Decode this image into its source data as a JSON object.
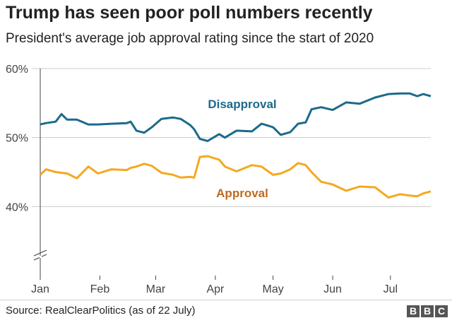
{
  "title": "Trump has seen poor poll numbers recently",
  "subtitle": "President's average job approval rating since the start of 2020",
  "source": "Source: RealClearPolitics (as of 22 July)",
  "logo": "BBC",
  "chart_data": {
    "type": "line",
    "xlabel": "",
    "ylabel": "",
    "ylim": [
      30,
      60
    ],
    "xlim": [
      "2020-01-01",
      "2020-07-22"
    ],
    "grid": true,
    "y_ticks": [
      {
        "value": 60,
        "label": "60%"
      },
      {
        "value": 50,
        "label": "50%"
      },
      {
        "value": 40,
        "label": "40%"
      }
    ],
    "x_ticks": [
      {
        "date": "2020-01-01",
        "label": "Jan"
      },
      {
        "date": "2020-02-01",
        "label": "Feb"
      },
      {
        "date": "2020-03-01",
        "label": "Mar"
      },
      {
        "date": "2020-04-01",
        "label": "Apr"
      },
      {
        "date": "2020-05-01",
        "label": "May"
      },
      {
        "date": "2020-06-01",
        "label": "Jun"
      },
      {
        "date": "2020-07-01",
        "label": "Jul"
      }
    ],
    "x": [
      "2020-01-01",
      "2020-01-04",
      "2020-01-09",
      "2020-01-12",
      "2020-01-15",
      "2020-01-20",
      "2020-01-26",
      "2020-01-31",
      "2020-02-07",
      "2020-02-15",
      "2020-02-17",
      "2020-02-20",
      "2020-02-24",
      "2020-02-28",
      "2020-03-04",
      "2020-03-10",
      "2020-03-14",
      "2020-03-19",
      "2020-03-21",
      "2020-03-24",
      "2020-03-28",
      "2020-04-03",
      "2020-04-06",
      "2020-04-12",
      "2020-04-20",
      "2020-04-25",
      "2020-05-01",
      "2020-05-05",
      "2020-05-10",
      "2020-05-14",
      "2020-05-18",
      "2020-05-21",
      "2020-05-26",
      "2020-06-01",
      "2020-06-08",
      "2020-06-15",
      "2020-06-23",
      "2020-06-30",
      "2020-07-06",
      "2020-07-11",
      "2020-07-15",
      "2020-07-18",
      "2020-07-22"
    ],
    "series": [
      {
        "name": "Disapproval",
        "color": "#1b6a8c",
        "label_color": "#1e6a8a",
        "values": [
          51.9,
          52.1,
          52.3,
          53.4,
          52.6,
          52.6,
          51.9,
          51.9,
          52.0,
          52.1,
          52.3,
          51.0,
          50.7,
          51.5,
          52.7,
          52.9,
          52.7,
          51.8,
          51.2,
          49.8,
          49.5,
          50.5,
          50.0,
          51.0,
          50.9,
          52.0,
          51.5,
          50.4,
          50.8,
          52.0,
          52.2,
          54.1,
          54.4,
          54.0,
          55.1,
          54.9,
          55.8,
          56.3,
          56.4,
          56.4,
          56.0,
          56.3,
          56.0
        ]
      },
      {
        "name": "Approval",
        "color": "#f4a91f",
        "label_color": "#c06a1f",
        "values": [
          44.6,
          45.4,
          45.0,
          44.9,
          44.8,
          44.1,
          45.8,
          44.8,
          45.4,
          45.3,
          45.6,
          45.8,
          46.2,
          45.9,
          44.9,
          44.6,
          44.2,
          44.3,
          44.2,
          47.2,
          47.3,
          46.8,
          45.8,
          45.1,
          46.0,
          45.8,
          44.6,
          44.8,
          45.4,
          46.3,
          46.0,
          45.0,
          43.6,
          43.2,
          42.3,
          42.9,
          42.8,
          41.3,
          41.8,
          41.6,
          41.5,
          41.9,
          42.2
        ]
      }
    ]
  }
}
